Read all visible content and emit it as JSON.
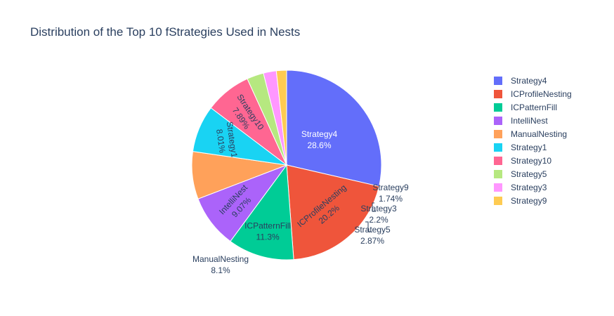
{
  "chart_data": {
    "type": "pie",
    "title": "Distribution of the Top 10 fStrategies Used in Nests",
    "legend_position": "right",
    "slices": [
      {
        "label": "Strategy4",
        "value": 28.6,
        "percent_text": "28.6%",
        "color": "#636efa"
      },
      {
        "label": "ICProfileNesting",
        "value": 20.2,
        "percent_text": "20.2%",
        "color": "#ef553b"
      },
      {
        "label": "ICPatternFill",
        "value": 11.3,
        "percent_text": "11.3%",
        "color": "#00cc96"
      },
      {
        "label": "IntelliNest",
        "value": 9.07,
        "percent_text": "9.07%",
        "color": "#ab63fa"
      },
      {
        "label": "ManualNesting",
        "value": 8.1,
        "percent_text": "8.1%",
        "color": "#ffa15a"
      },
      {
        "label": "Strategy1",
        "value": 8.01,
        "percent_text": "8.01%",
        "color": "#19d3f3"
      },
      {
        "label": "Strategy10",
        "value": 7.89,
        "percent_text": "7.89%",
        "color": "#ff6692"
      },
      {
        "label": "Strategy5",
        "value": 2.87,
        "percent_text": "2.87%",
        "color": "#b6e880"
      },
      {
        "label": "Strategy3",
        "value": 2.2,
        "percent_text": "2.2%",
        "color": "#ff97ff"
      },
      {
        "label": "Strategy9",
        "value": 1.74,
        "percent_text": "1.74%",
        "color": "#fecb52"
      }
    ]
  }
}
